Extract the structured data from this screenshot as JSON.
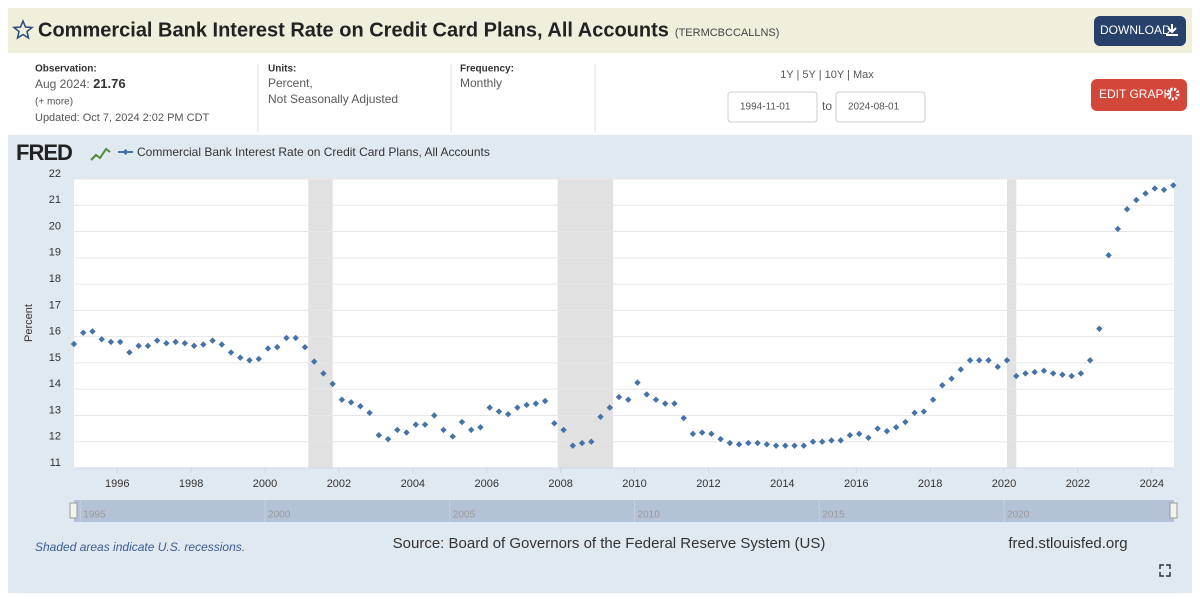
{
  "header": {
    "title": "Commercial Bank Interest Rate on Credit Card Plans, All Accounts",
    "series_id": "(TERMCBCCALLNS)",
    "download": "DOWNLOAD"
  },
  "info": {
    "observation_label": "Observation:",
    "observation_date": "Aug 2024:",
    "observation_value": 21.76,
    "more": "(+ more)",
    "updated": "Updated: Oct 7, 2024 2:02 PM CDT",
    "units_label": "Units:",
    "units": [
      "Percent,",
      "Not Seasonally Adjusted"
    ],
    "frequency_label": "Frequency:",
    "frequency": "Monthly"
  },
  "range": {
    "buttons": "1Y | 5Y | 10Y | Max",
    "start": "1994-11-01",
    "to": "to",
    "end": "2024-08-01",
    "edit": "EDIT GRAPH"
  },
  "footer": {
    "note": "Shaded areas indicate U.S. recessions.",
    "source": "Source: Board of Governors of the Federal Reserve System (US)",
    "site": "fred.stlouisfed.org"
  },
  "chart_data": {
    "type": "scatter",
    "logo": "FRED",
    "ylabel": "Percent",
    "x": [
      1994.83,
      1995.08,
      1995.33,
      1995.58,
      1995.83,
      1996.08,
      1996.33,
      1996.58,
      1996.83,
      1997.08,
      1997.33,
      1997.58,
      1997.83,
      1998.08,
      1998.33,
      1998.58,
      1998.83,
      1999.08,
      1999.33,
      1999.58,
      1999.83,
      2000.08,
      2000.33,
      2000.58,
      2000.83,
      2001.08,
      2001.33,
      2001.58,
      2001.83,
      2002.08,
      2002.33,
      2002.58,
      2002.83,
      2003.08,
      2003.33,
      2003.58,
      2003.83,
      2004.08,
      2004.33,
      2004.58,
      2004.83,
      2005.08,
      2005.33,
      2005.58,
      2005.83,
      2006.08,
      2006.33,
      2006.58,
      2006.83,
      2007.08,
      2007.33,
      2007.58,
      2007.83,
      2008.08,
      2008.33,
      2008.58,
      2008.83,
      2009.08,
      2009.33,
      2009.58,
      2009.83,
      2010.08,
      2010.33,
      2010.58,
      2010.83,
      2011.08,
      2011.33,
      2011.58,
      2011.83,
      2012.08,
      2012.33,
      2012.58,
      2012.83,
      2013.08,
      2013.33,
      2013.58,
      2013.83,
      2014.08,
      2014.33,
      2014.58,
      2014.83,
      2015.08,
      2015.33,
      2015.58,
      2015.83,
      2016.08,
      2016.33,
      2016.58,
      2016.83,
      2017.08,
      2017.33,
      2017.58,
      2017.83,
      2018.08,
      2018.33,
      2018.58,
      2018.83,
      2019.08,
      2019.33,
      2019.58,
      2019.83,
      2020.08,
      2020.33,
      2020.58,
      2020.83,
      2021.08,
      2021.33,
      2021.58,
      2021.83,
      2022.08,
      2022.33,
      2022.58,
      2022.83,
      2023.08,
      2023.33,
      2023.58,
      2023.83,
      2024.08,
      2024.33,
      2024.58
    ],
    "series": [
      {
        "name": "Commercial Bank Interest Rate on Credit Card Plans, All Accounts",
        "color": "#4572a7",
        "values": [
          15.72,
          16.15,
          16.2,
          15.9,
          15.8,
          15.8,
          15.4,
          15.65,
          15.65,
          15.85,
          15.75,
          15.8,
          15.75,
          15.65,
          15.7,
          15.85,
          15.7,
          15.4,
          15.2,
          15.1,
          15.15,
          15.55,
          15.6,
          15.95,
          15.95,
          15.6,
          15.05,
          14.6,
          14.2,
          13.6,
          13.5,
          13.35,
          13.1,
          12.25,
          12.1,
          12.45,
          12.35,
          12.65,
          12.65,
          13.0,
          12.45,
          12.2,
          12.75,
          12.45,
          12.55,
          13.3,
          13.15,
          13.05,
          13.3,
          13.4,
          13.45,
          13.55,
          12.7,
          12.45,
          11.85,
          11.95,
          12.0,
          12.95,
          13.3,
          13.7,
          13.6,
          14.25,
          13.8,
          13.6,
          13.45,
          13.45,
          12.9,
          12.3,
          12.35,
          12.3,
          12.1,
          11.95,
          11.9,
          11.95,
          11.95,
          11.9,
          11.85,
          11.85,
          11.85,
          11.85,
          12.0,
          12.0,
          12.05,
          12.05,
          12.25,
          12.3,
          12.15,
          12.5,
          12.4,
          12.55,
          12.75,
          13.1,
          13.15,
          13.6,
          14.15,
          14.4,
          14.75,
          15.1,
          15.1,
          15.1,
          14.85,
          15.1,
          14.5,
          14.6,
          14.65,
          14.7,
          14.6,
          14.55,
          14.5,
          14.6,
          15.1,
          16.3,
          19.1,
          20.1,
          20.85,
          21.2,
          21.45,
          21.64,
          21.59,
          21.76
        ]
      }
    ],
    "recessions": [
      [
        2001.17,
        2001.83
      ],
      [
        2007.92,
        2009.42
      ],
      [
        2020.08,
        2020.33
      ]
    ],
    "recession_color": "#e1e1e1",
    "xlim": [
      1994.83,
      2024.6
    ],
    "xticks": [
      1996,
      1998,
      2000,
      2002,
      2004,
      2006,
      2008,
      2010,
      2012,
      2014,
      2016,
      2018,
      2020,
      2022,
      2024
    ],
    "ylim": [
      11,
      22
    ],
    "yticks": [
      11,
      12,
      13,
      14,
      15,
      16,
      17,
      18,
      19,
      20,
      21,
      22
    ],
    "grid": true,
    "navigator_ticks": [
      1995,
      2000,
      2005,
      2010,
      2015,
      2020
    ]
  }
}
